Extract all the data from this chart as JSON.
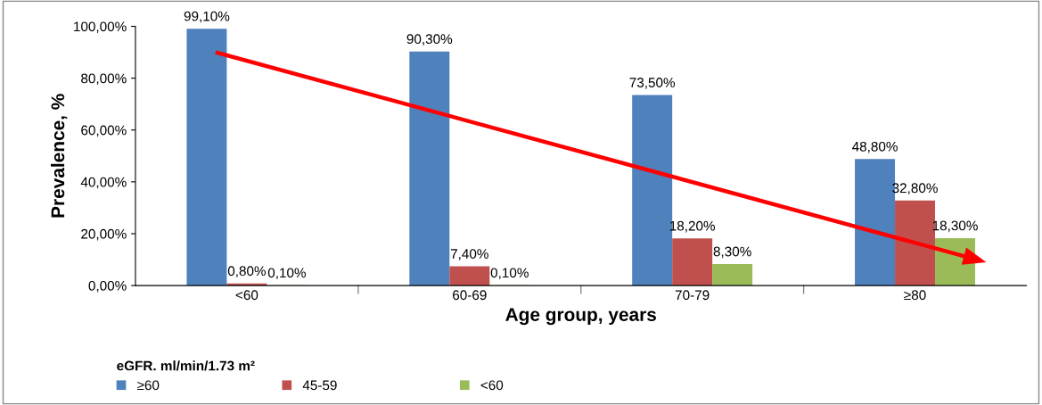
{
  "chart_data": {
    "type": "bar",
    "xlabel": "Age group, years",
    "ylabel": "Prevalence, %",
    "legend_title": "eGFR. ml/min/1.73 m²",
    "categories": [
      "<60",
      "60-69",
      "70-79",
      "≥80"
    ],
    "series": [
      {
        "name": "≥60",
        "color": "#4f81bd",
        "values": [
          99.1,
          90.3,
          73.5,
          48.8
        ],
        "value_labels": [
          "99,10%",
          "90,30%",
          "73,50%",
          "48,80%"
        ]
      },
      {
        "name": "45-59",
        "color": "#c0504d",
        "values": [
          0.8,
          7.4,
          18.2,
          32.8
        ],
        "value_labels": [
          "0,80%",
          "7,40%",
          "18,20%",
          "32,80%"
        ]
      },
      {
        "name": "<60",
        "color": "#9bbb59",
        "values": [
          0.1,
          0.1,
          8.3,
          18.3
        ],
        "value_labels": [
          "0,10%",
          "0,10%",
          "8,30%",
          "18,30%"
        ]
      }
    ],
    "ylim": [
      0,
      100
    ],
    "yticks": [
      {
        "value": 0,
        "label": "0,00%"
      },
      {
        "value": 20,
        "label": "20,00%"
      },
      {
        "value": 40,
        "label": "40,00%"
      },
      {
        "value": 60,
        "label": "60,00%"
      },
      {
        "value": 80,
        "label": "80,00%"
      },
      {
        "value": 100,
        "label": "100,00%"
      }
    ],
    "grid": false,
    "legend": "bottom"
  }
}
